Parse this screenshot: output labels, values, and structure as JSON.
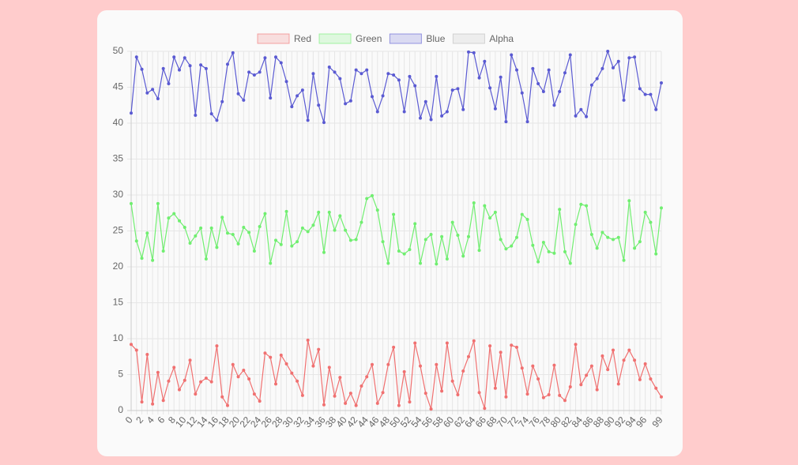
{
  "chart_data": {
    "type": "line",
    "categories": [
      "0",
      null,
      "2",
      null,
      "4",
      null,
      "6",
      null,
      "8",
      null,
      "10",
      null,
      "12",
      null,
      "14",
      null,
      "16",
      null,
      "18",
      null,
      "20",
      null,
      "22",
      null,
      "24",
      null,
      "26",
      null,
      "28",
      null,
      "30",
      null,
      "32",
      null,
      "34",
      null,
      "36",
      null,
      "38",
      null,
      "40",
      null,
      "42",
      null,
      "44",
      null,
      "46",
      null,
      "48",
      null,
      "50",
      null,
      "52",
      null,
      "54",
      null,
      "56",
      null,
      "58",
      null,
      "60",
      null,
      "62",
      null,
      "64",
      null,
      "66",
      null,
      "68",
      null,
      "70",
      null,
      "72",
      null,
      "74",
      null,
      "76",
      null,
      "78",
      null,
      "80",
      null,
      "82",
      null,
      "84",
      null,
      "86",
      null,
      "88",
      null,
      "90",
      null,
      "92",
      null,
      "94",
      null,
      "96",
      null,
      null,
      "99"
    ],
    "series": [
      {
        "name": "Red",
        "color": "#f07070",
        "values": [
          9.2,
          8.4,
          1.2,
          7.8,
          0.9,
          5.3,
          1.4,
          4.1,
          6.0,
          2.9,
          4.2,
          7.0,
          2.3,
          4.0,
          4.5,
          4.0,
          9.0,
          1.9,
          0.7,
          6.4,
          4.7,
          5.6,
          4.4,
          2.3,
          1.3,
          8.0,
          7.4,
          3.7,
          7.7,
          6.5,
          5.2,
          4.1,
          2.1,
          9.8,
          6.2,
          8.5,
          0.8,
          6.0,
          2.0,
          4.6,
          1.0,
          2.4,
          0.7,
          3.4,
          4.7,
          6.4,
          1.0,
          2.5,
          6.4,
          8.8,
          0.7,
          5.4,
          1.2,
          9.4,
          6.2,
          2.4,
          0.2,
          6.4,
          2.7,
          9.4,
          4.1,
          2.2,
          5.5,
          7.5,
          9.7,
          2.5,
          0.3,
          9.0,
          3.1,
          8.1,
          1.9,
          9.1,
          8.8,
          5.9,
          2.3,
          6.2,
          4.4,
          1.8,
          2.2,
          6.3,
          2.1,
          1.4,
          3.3,
          9.2,
          3.6,
          4.9,
          6.2,
          2.9,
          7.6,
          5.7,
          8.4,
          3.7,
          7.0,
          8.4,
          7.0,
          4.3,
          6.5,
          4.4,
          3.1,
          1.9
        ]
      },
      {
        "name": "Green",
        "color": "#70ee70",
        "values": [
          28.8,
          23.6,
          21.2,
          24.7,
          20.9,
          28.8,
          22.2,
          26.8,
          27.4,
          26.4,
          25.5,
          23.3,
          24.3,
          25.4,
          21.1,
          25.4,
          22.7,
          26.9,
          24.7,
          24.5,
          23.2,
          25.5,
          24.8,
          22.2,
          25.6,
          27.4,
          20.5,
          23.7,
          23.1,
          27.7,
          22.9,
          23.5,
          25.4,
          24.9,
          25.8,
          27.6,
          22.0,
          27.6,
          25.1,
          27.1,
          25.1,
          23.7,
          23.8,
          26.2,
          29.5,
          29.9,
          27.9,
          23.5,
          20.5,
          27.3,
          22.2,
          21.8,
          22.4,
          26.0,
          20.5,
          23.8,
          24.5,
          20.4,
          24.2,
          21.1,
          26.2,
          24.4,
          21.5,
          24.2,
          28.9,
          22.3,
          28.5,
          26.8,
          27.6,
          23.8,
          22.5,
          22.9,
          24.1,
          27.3,
          26.6,
          23.0,
          20.7,
          23.4,
          22.1,
          21.9,
          28.0,
          22.1,
          20.5,
          25.9,
          28.7,
          28.5,
          24.5,
          22.6,
          24.8,
          24.1,
          23.8,
          24.1,
          20.9,
          29.2,
          22.6,
          23.5,
          27.6,
          26.2,
          21.8,
          28.2
        ]
      },
      {
        "name": "Blue",
        "color": "#5a5ad2",
        "values": [
          41.4,
          49.2,
          47.5,
          44.2,
          44.7,
          43.4,
          47.6,
          45.5,
          49.2,
          47.4,
          49.1,
          48.0,
          41.1,
          48.1,
          47.6,
          41.3,
          40.4,
          43.0,
          48.2,
          49.8,
          44.1,
          43.2,
          47.1,
          46.7,
          47.1,
          49.1,
          43.5,
          49.2,
          48.4,
          45.8,
          42.3,
          43.8,
          44.6,
          40.4,
          46.9,
          42.5,
          40.1,
          47.8,
          47.1,
          46.2,
          42.7,
          43.1,
          47.4,
          46.9,
          47.4,
          43.7,
          41.6,
          43.8,
          46.9,
          46.7,
          46.0,
          41.6,
          46.5,
          45.2,
          40.7,
          43.0,
          40.5,
          46.5,
          41.0,
          41.6,
          44.6,
          44.8,
          41.9,
          49.9,
          49.8,
          46.3,
          48.6,
          44.9,
          42.0,
          46.4,
          40.2,
          49.5,
          47.4,
          44.2,
          40.2,
          47.6,
          45.5,
          44.4,
          47.4,
          42.5,
          44.4,
          47.0,
          49.5,
          41.0,
          41.9,
          40.9,
          45.3,
          46.2,
          47.6,
          50.0,
          47.7,
          48.6,
          43.2,
          49.1,
          49.2,
          44.8,
          44.0,
          44.0,
          41.9,
          45.6
        ]
      },
      {
        "name": "Alpha",
        "color": "#bbbbbb",
        "values": [
          null,
          null,
          null,
          null,
          null,
          null,
          null,
          null,
          null,
          null,
          null,
          null,
          null,
          null,
          null,
          null,
          null,
          null,
          null,
          null,
          null,
          null,
          null,
          null,
          null,
          null,
          null,
          null,
          null,
          null,
          null,
          null,
          null,
          null,
          null,
          null,
          null,
          null,
          null,
          null,
          null,
          null,
          null,
          null,
          null,
          null,
          null,
          null,
          null,
          null,
          null,
          null,
          null,
          null,
          null,
          null,
          null,
          null,
          null,
          null,
          null,
          null,
          null,
          null,
          null,
          null,
          null,
          null,
          null,
          null,
          null,
          null,
          null,
          null,
          null,
          null,
          null,
          null,
          null,
          null,
          null,
          null,
          null,
          null,
          null,
          null,
          null,
          null,
          null,
          null,
          null,
          null,
          null,
          null,
          null,
          null,
          null,
          null,
          null,
          null
        ]
      }
    ],
    "ylim": [
      0,
      50
    ],
    "yticks": [
      0,
      5,
      10,
      15,
      20,
      25,
      30,
      35,
      40,
      45,
      50
    ],
    "grid": true,
    "legend": "top"
  }
}
